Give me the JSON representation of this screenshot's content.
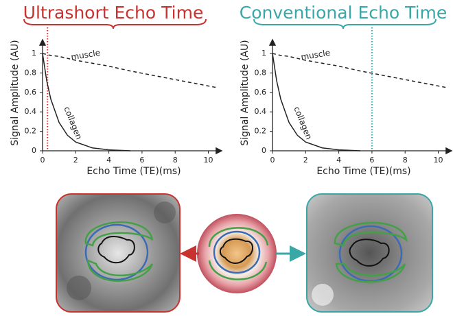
{
  "chart_data": [
    {
      "type": "line",
      "title": "Ultrashort Echo Time",
      "title_color": "#c8322f",
      "xlabel": "Echo Time (TE)(ms)",
      "ylabel": "Signal Amplitude (AU)",
      "x": [
        0,
        0.25,
        0.5,
        1,
        1.5,
        2,
        3,
        4,
        5.3,
        10.5
      ],
      "series": [
        {
          "name": "muscle",
          "color": "#222222",
          "dash": true,
          "values": [
            1,
            0.99,
            0.98,
            0.97,
            0.95,
            0.93,
            0.9,
            0.87,
            0.82,
            0.65
          ]
        },
        {
          "name": "collagen",
          "color": "#222222",
          "dash": false,
          "values": [
            1,
            0.72,
            0.53,
            0.29,
            0.16,
            0.09,
            0.03,
            0.01,
            0,
            null
          ]
        }
      ],
      "marker_x": 0.3,
      "marker_color": "#c8322f",
      "xlim": [
        0,
        10.6
      ],
      "ylim": [
        0,
        1.12
      ],
      "xticks": [
        0,
        2,
        4,
        6,
        8,
        10
      ],
      "yticks": [
        0,
        0.2,
        0.4,
        0.6,
        0.8,
        1
      ]
    },
    {
      "type": "line",
      "title": "Conventional Echo Time",
      "title_color": "#3aa7a7",
      "xlabel": "Echo Time (TE)(ms)",
      "ylabel": "Signal Amplitude (AU)",
      "x": [
        0,
        0.25,
        0.5,
        1,
        1.5,
        2,
        3,
        4,
        5.3,
        10.5
      ],
      "series": [
        {
          "name": "muscle",
          "color": "#222222",
          "dash": true,
          "values": [
            1,
            0.99,
            0.98,
            0.97,
            0.95,
            0.93,
            0.9,
            0.87,
            0.82,
            0.65
          ]
        },
        {
          "name": "collagen",
          "color": "#222222",
          "dash": false,
          "values": [
            1,
            0.72,
            0.53,
            0.29,
            0.16,
            0.09,
            0.03,
            0.01,
            0,
            null
          ]
        }
      ],
      "marker_x": 6,
      "marker_color": "#3aa7a7",
      "xlim": [
        0,
        10.6
      ],
      "ylim": [
        0,
        1.12
      ],
      "xticks": [
        0,
        2,
        4,
        6,
        8,
        10
      ],
      "yticks": [
        0,
        0.2,
        0.4,
        0.6,
        0.8,
        1
      ]
    }
  ]
}
